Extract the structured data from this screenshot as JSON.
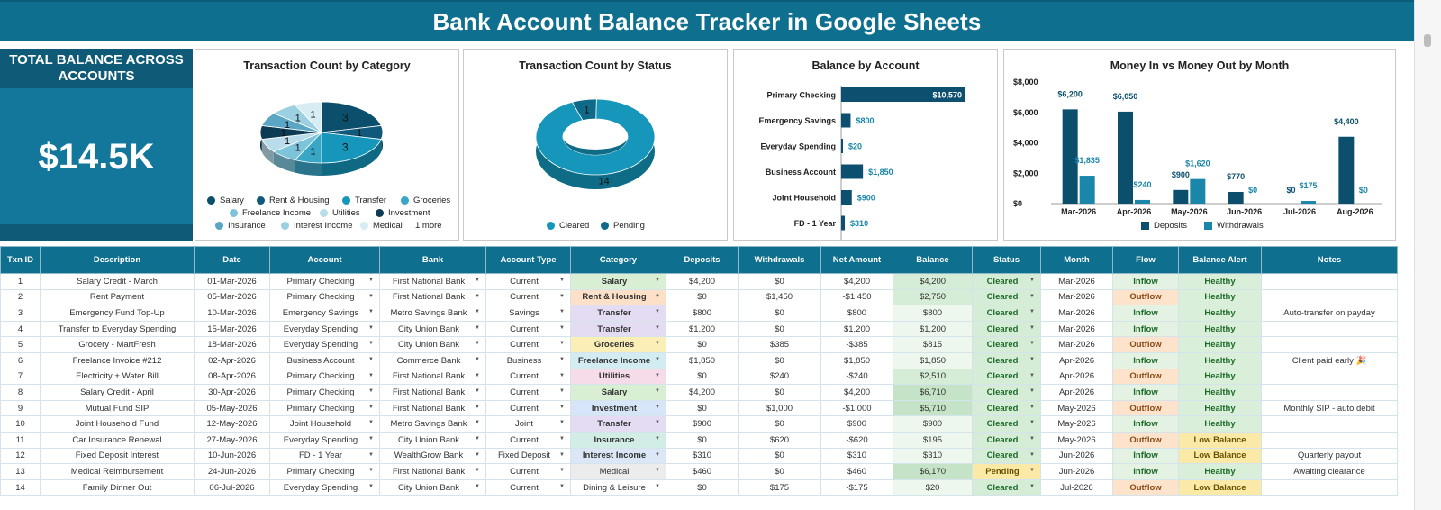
{
  "title": "Bank Account Balance Tracker in Google Sheets",
  "kpi": {
    "label": "TOTAL BALANCE ACROSS ACCOUNTS",
    "value": "$14.5K"
  },
  "colors": {
    "brand": "#0e6f8f",
    "dark": "#0f5b77",
    "mid": "#1a9bbf",
    "teal": "#1a9bbf"
  },
  "chart_data": [
    {
      "type": "pie",
      "title": "Transaction Count by Category",
      "slices": [
        {
          "label": "Salary",
          "value": 3,
          "color": "#0b4f6c"
        },
        {
          "label": "Rent & Housing",
          "value": 1,
          "color": "#10597a"
        },
        {
          "label": "Transfer",
          "value": 3,
          "color": "#1596ba"
        },
        {
          "label": "Groceries",
          "value": 1,
          "color": "#3aa6c6"
        },
        {
          "label": "Freelance Income",
          "value": 1,
          "color": "#7dc3da"
        },
        {
          "label": "Utilities",
          "value": 1,
          "color": "#b8dcea"
        },
        {
          "label": "Investment",
          "value": 1,
          "color": "#0d3b54"
        },
        {
          "label": "Insurance",
          "value": 1,
          "color": "#5aa6c4"
        },
        {
          "label": "Interest Income",
          "value": 1,
          "color": "#9ccfe2"
        },
        {
          "label": "Medical",
          "value": 1,
          "color": "#d8ecf3"
        }
      ],
      "legend_more": "1 more"
    },
    {
      "type": "pie",
      "title": "Transaction Count by Status",
      "slices": [
        {
          "label": "Cleared",
          "value": 14,
          "color": "#1596ba"
        },
        {
          "label": "Pending",
          "value": 1,
          "color": "#0f6a8a"
        }
      ]
    },
    {
      "type": "bar",
      "title": "Balance by Account",
      "categories": [
        "Primary Checking",
        "Emergency Savings",
        "Everyday Spending",
        "Business Account",
        "Joint Household",
        "FD - 1 Year"
      ],
      "values": [
        10570,
        800,
        20,
        1850,
        900,
        310
      ],
      "labels": [
        "$10,570",
        "$800",
        "$20",
        "$1,850",
        "$900",
        "$310"
      ],
      "xlim": [
        0,
        10570
      ]
    },
    {
      "type": "bar",
      "title": "Money In vs Money Out by Month",
      "categories": [
        "Mar-2026",
        "Apr-2026",
        "May-2026",
        "Jun-2026",
        "Jul-2026",
        "Aug-2026"
      ],
      "series": [
        {
          "name": "Deposits",
          "values": [
            6200,
            6050,
            900,
            770,
            0,
            4400
          ],
          "labels": [
            "$6,200",
            "$6,050",
            "$900",
            "$770",
            "$0",
            "$4,400"
          ],
          "color": "#0b4f6c"
        },
        {
          "name": "Withdrawals",
          "values": [
            1835,
            240,
            1620,
            0,
            175,
            0
          ],
          "labels": [
            "$1,835",
            "$240",
            "$1,620",
            "$0",
            "$175",
            "$0"
          ],
          "color": "#1a86aa"
        }
      ],
      "yticks": [
        "$8,000",
        "$6,000",
        "$4,000",
        "$2,000",
        "$0"
      ],
      "ylim": [
        0,
        8000
      ]
    }
  ],
  "table": {
    "headers": [
      "Txn ID",
      "Description",
      "Date",
      "Account",
      "Bank",
      "Account Type",
      "Category",
      "Deposits",
      "Withdrawals",
      "Net Amount",
      "Balance",
      "Status",
      "Month",
      "Flow",
      "Balance Alert",
      "Notes"
    ],
    "rows": [
      [
        "1",
        "Salary Credit - March",
        "01-Mar-2026",
        "Primary Checking",
        "First National Bank",
        "Current",
        "Salary",
        "$4,200",
        "$0",
        "$4,200",
        "$4,200",
        "Cleared",
        "Mar-2026",
        "Inflow",
        "Healthy",
        ""
      ],
      [
        "2",
        "Rent Payment",
        "05-Mar-2026",
        "Primary Checking",
        "First National Bank",
        "Current",
        "Rent & Housing",
        "$0",
        "$1,450",
        "-$1,450",
        "$2,750",
        "Cleared",
        "Mar-2026",
        "Outflow",
        "Healthy",
        ""
      ],
      [
        "3",
        "Emergency Fund Top-Up",
        "10-Mar-2026",
        "Emergency Savings",
        "Metro Savings Bank",
        "Savings",
        "Transfer",
        "$800",
        "$0",
        "$800",
        "$800",
        "Cleared",
        "Mar-2026",
        "Inflow",
        "Healthy",
        "Auto-transfer on payday"
      ],
      [
        "4",
        "Transfer to Everyday Spending",
        "15-Mar-2026",
        "Everyday Spending",
        "City Union Bank",
        "Current",
        "Transfer",
        "$1,200",
        "$0",
        "$1,200",
        "$1,200",
        "Cleared",
        "Mar-2026",
        "Inflow",
        "Healthy",
        ""
      ],
      [
        "5",
        "Grocery - MartFresh",
        "18-Mar-2026",
        "Everyday Spending",
        "City Union Bank",
        "Current",
        "Groceries",
        "$0",
        "$385",
        "-$385",
        "$815",
        "Cleared",
        "Mar-2026",
        "Outflow",
        "Healthy",
        ""
      ],
      [
        "6",
        "Freelance Invoice #212",
        "02-Apr-2026",
        "Business Account",
        "Commerce Bank",
        "Business",
        "Freelance Income",
        "$1,850",
        "$0",
        "$1,850",
        "$1,850",
        "Cleared",
        "Apr-2026",
        "Inflow",
        "Healthy",
        "Client paid early 🎉"
      ],
      [
        "7",
        "Electricity + Water Bill",
        "08-Apr-2026",
        "Primary Checking",
        "First National Bank",
        "Current",
        "Utilities",
        "$0",
        "$240",
        "-$240",
        "$2,510",
        "Cleared",
        "Apr-2026",
        "Outflow",
        "Healthy",
        ""
      ],
      [
        "8",
        "Salary Credit - April",
        "30-Apr-2026",
        "Primary Checking",
        "First National Bank",
        "Current",
        "Salary",
        "$4,200",
        "$0",
        "$4,200",
        "$6,710",
        "Cleared",
        "Apr-2026",
        "Inflow",
        "Healthy",
        ""
      ],
      [
        "9",
        "Mutual Fund SIP",
        "05-May-2026",
        "Primary Checking",
        "First National Bank",
        "Current",
        "Investment",
        "$0",
        "$1,000",
        "-$1,000",
        "$5,710",
        "Cleared",
        "May-2026",
        "Outflow",
        "Healthy",
        "Monthly SIP - auto debit"
      ],
      [
        "10",
        "Joint Household Fund",
        "12-May-2026",
        "Joint Household",
        "Metro Savings Bank",
        "Joint",
        "Transfer",
        "$900",
        "$0",
        "$900",
        "$900",
        "Cleared",
        "May-2026",
        "Inflow",
        "Healthy",
        ""
      ],
      [
        "11",
        "Car Insurance Renewal",
        "27-May-2026",
        "Everyday Spending",
        "City Union Bank",
        "Current",
        "Insurance",
        "$0",
        "$620",
        "-$620",
        "$195",
        "Cleared",
        "May-2026",
        "Outflow",
        "Low Balance",
        ""
      ],
      [
        "12",
        "Fixed Deposit Interest",
        "10-Jun-2026",
        "FD - 1 Year",
        "WealthGrow Bank",
        "Fixed Deposit",
        "Interest Income",
        "$310",
        "$0",
        "$310",
        "$310",
        "Cleared",
        "Jun-2026",
        "Inflow",
        "Low Balance",
        "Quarterly payout"
      ],
      [
        "13",
        "Medical Reimbursement",
        "24-Jun-2026",
        "Primary Checking",
        "First National Bank",
        "Current",
        "Medical",
        "$460",
        "$0",
        "$460",
        "$6,170",
        "Pending",
        "Jun-2026",
        "Inflow",
        "Healthy",
        "Awaiting clearance"
      ],
      [
        "14",
        "Family Dinner Out",
        "06-Jul-2026",
        "Everyday Spending",
        "City Union Bank",
        "Current",
        "Dining & Leisure",
        "$0",
        "$175",
        "-$175",
        "$20",
        "Cleared",
        "Jul-2026",
        "Outflow",
        "Low Balance",
        ""
      ]
    ],
    "category_colors": {
      "Salary": "#d9efd4",
      "Rent & Housing": "#fde0c8",
      "Transfer": "#e3dcf3",
      "Groceries": "#fbeeb6",
      "Freelance Income": "#d2ecf1",
      "Utilities": "#f6dbe9",
      "Investment": "#d6e5f7",
      "Insurance": "#d2ede6",
      "Interest Income": "#dbe6f6",
      "Medical": "#ececec",
      "Dining & Leisure": "#ffffff"
    }
  }
}
